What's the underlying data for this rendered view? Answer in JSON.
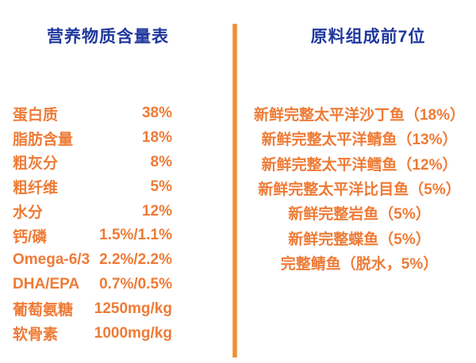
{
  "colors": {
    "background": "#ffffff",
    "header_blue": "#20389d",
    "body_orange": "#ee7b36",
    "divider_orange": "#ee8d33"
  },
  "left_panel": {
    "title": "营养物质含量表",
    "rows": [
      {
        "label": "蛋白质",
        "value": "38%"
      },
      {
        "label": "脂肪含量",
        "value": "18%"
      },
      {
        "label": "粗灰分",
        "value": "8%"
      },
      {
        "label": "粗纤维",
        "value": "5%"
      },
      {
        "label": "水分",
        "value": "12%"
      },
      {
        "label": "钙/磷",
        "value": "1.5%/1.1%"
      },
      {
        "label": "Omega-6/3",
        "value": "2.2%/2.2%"
      },
      {
        "label": "DHA/EPA",
        "value": "0.7%/0.5%"
      },
      {
        "label": "葡萄氨糖",
        "value": "1250mg/kg"
      },
      {
        "label": "软骨素",
        "value": "1000mg/kg"
      }
    ]
  },
  "right_panel": {
    "title": "原料组成前7位",
    "items": [
      "新鲜完整太平洋沙丁鱼（18%）",
      "新鲜完整太平洋鲭鱼（13%）",
      "新鲜完整太平洋鳕鱼（12%）",
      "新鲜完整太平洋比目鱼（5%）",
      "新鲜完整岩鱼（5%）",
      "新鲜完整蝶鱼（5%）",
      "完整鲭鱼（脱水，5%）"
    ]
  }
}
